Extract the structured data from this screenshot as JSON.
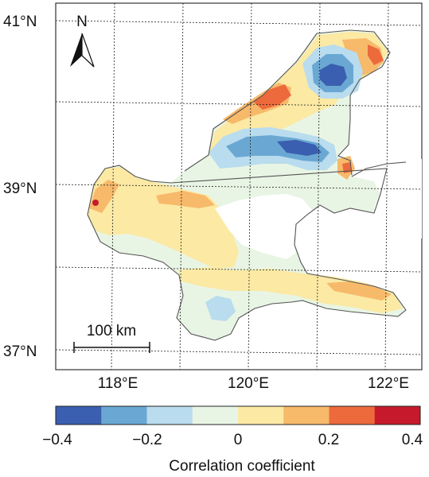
{
  "map": {
    "lat_labels": [
      "41°N",
      "39°N",
      "37°N"
    ],
    "lon_labels": [
      "118°E",
      "120°E",
      "122°E"
    ],
    "north_arrow_label": "N",
    "scale_bar_label": "100 km",
    "background_color": "#ffffff",
    "land_color": "#ffffff",
    "coastline_color": "#555555"
  },
  "colorbar": {
    "title": "Correlation coefficient",
    "tick_labels": [
      "−0.4",
      "−0.2",
      "0",
      "0.2",
      "0.4"
    ],
    "range": [
      -0.4,
      0.4
    ],
    "bins": [
      {
        "color": "#3a5fb0",
        "value": -0.35
      },
      {
        "color": "#6aa8d3",
        "value": -0.25
      },
      {
        "color": "#b9dcee",
        "value": -0.15
      },
      {
        "color": "#e9f5e4",
        "value": -0.05
      },
      {
        "color": "#fbe9a4",
        "value": 0.05
      },
      {
        "color": "#f7b96a",
        "value": 0.15
      },
      {
        "color": "#ec6a3c",
        "value": 0.25
      },
      {
        "color": "#c6192b",
        "value": 0.35
      }
    ]
  }
}
